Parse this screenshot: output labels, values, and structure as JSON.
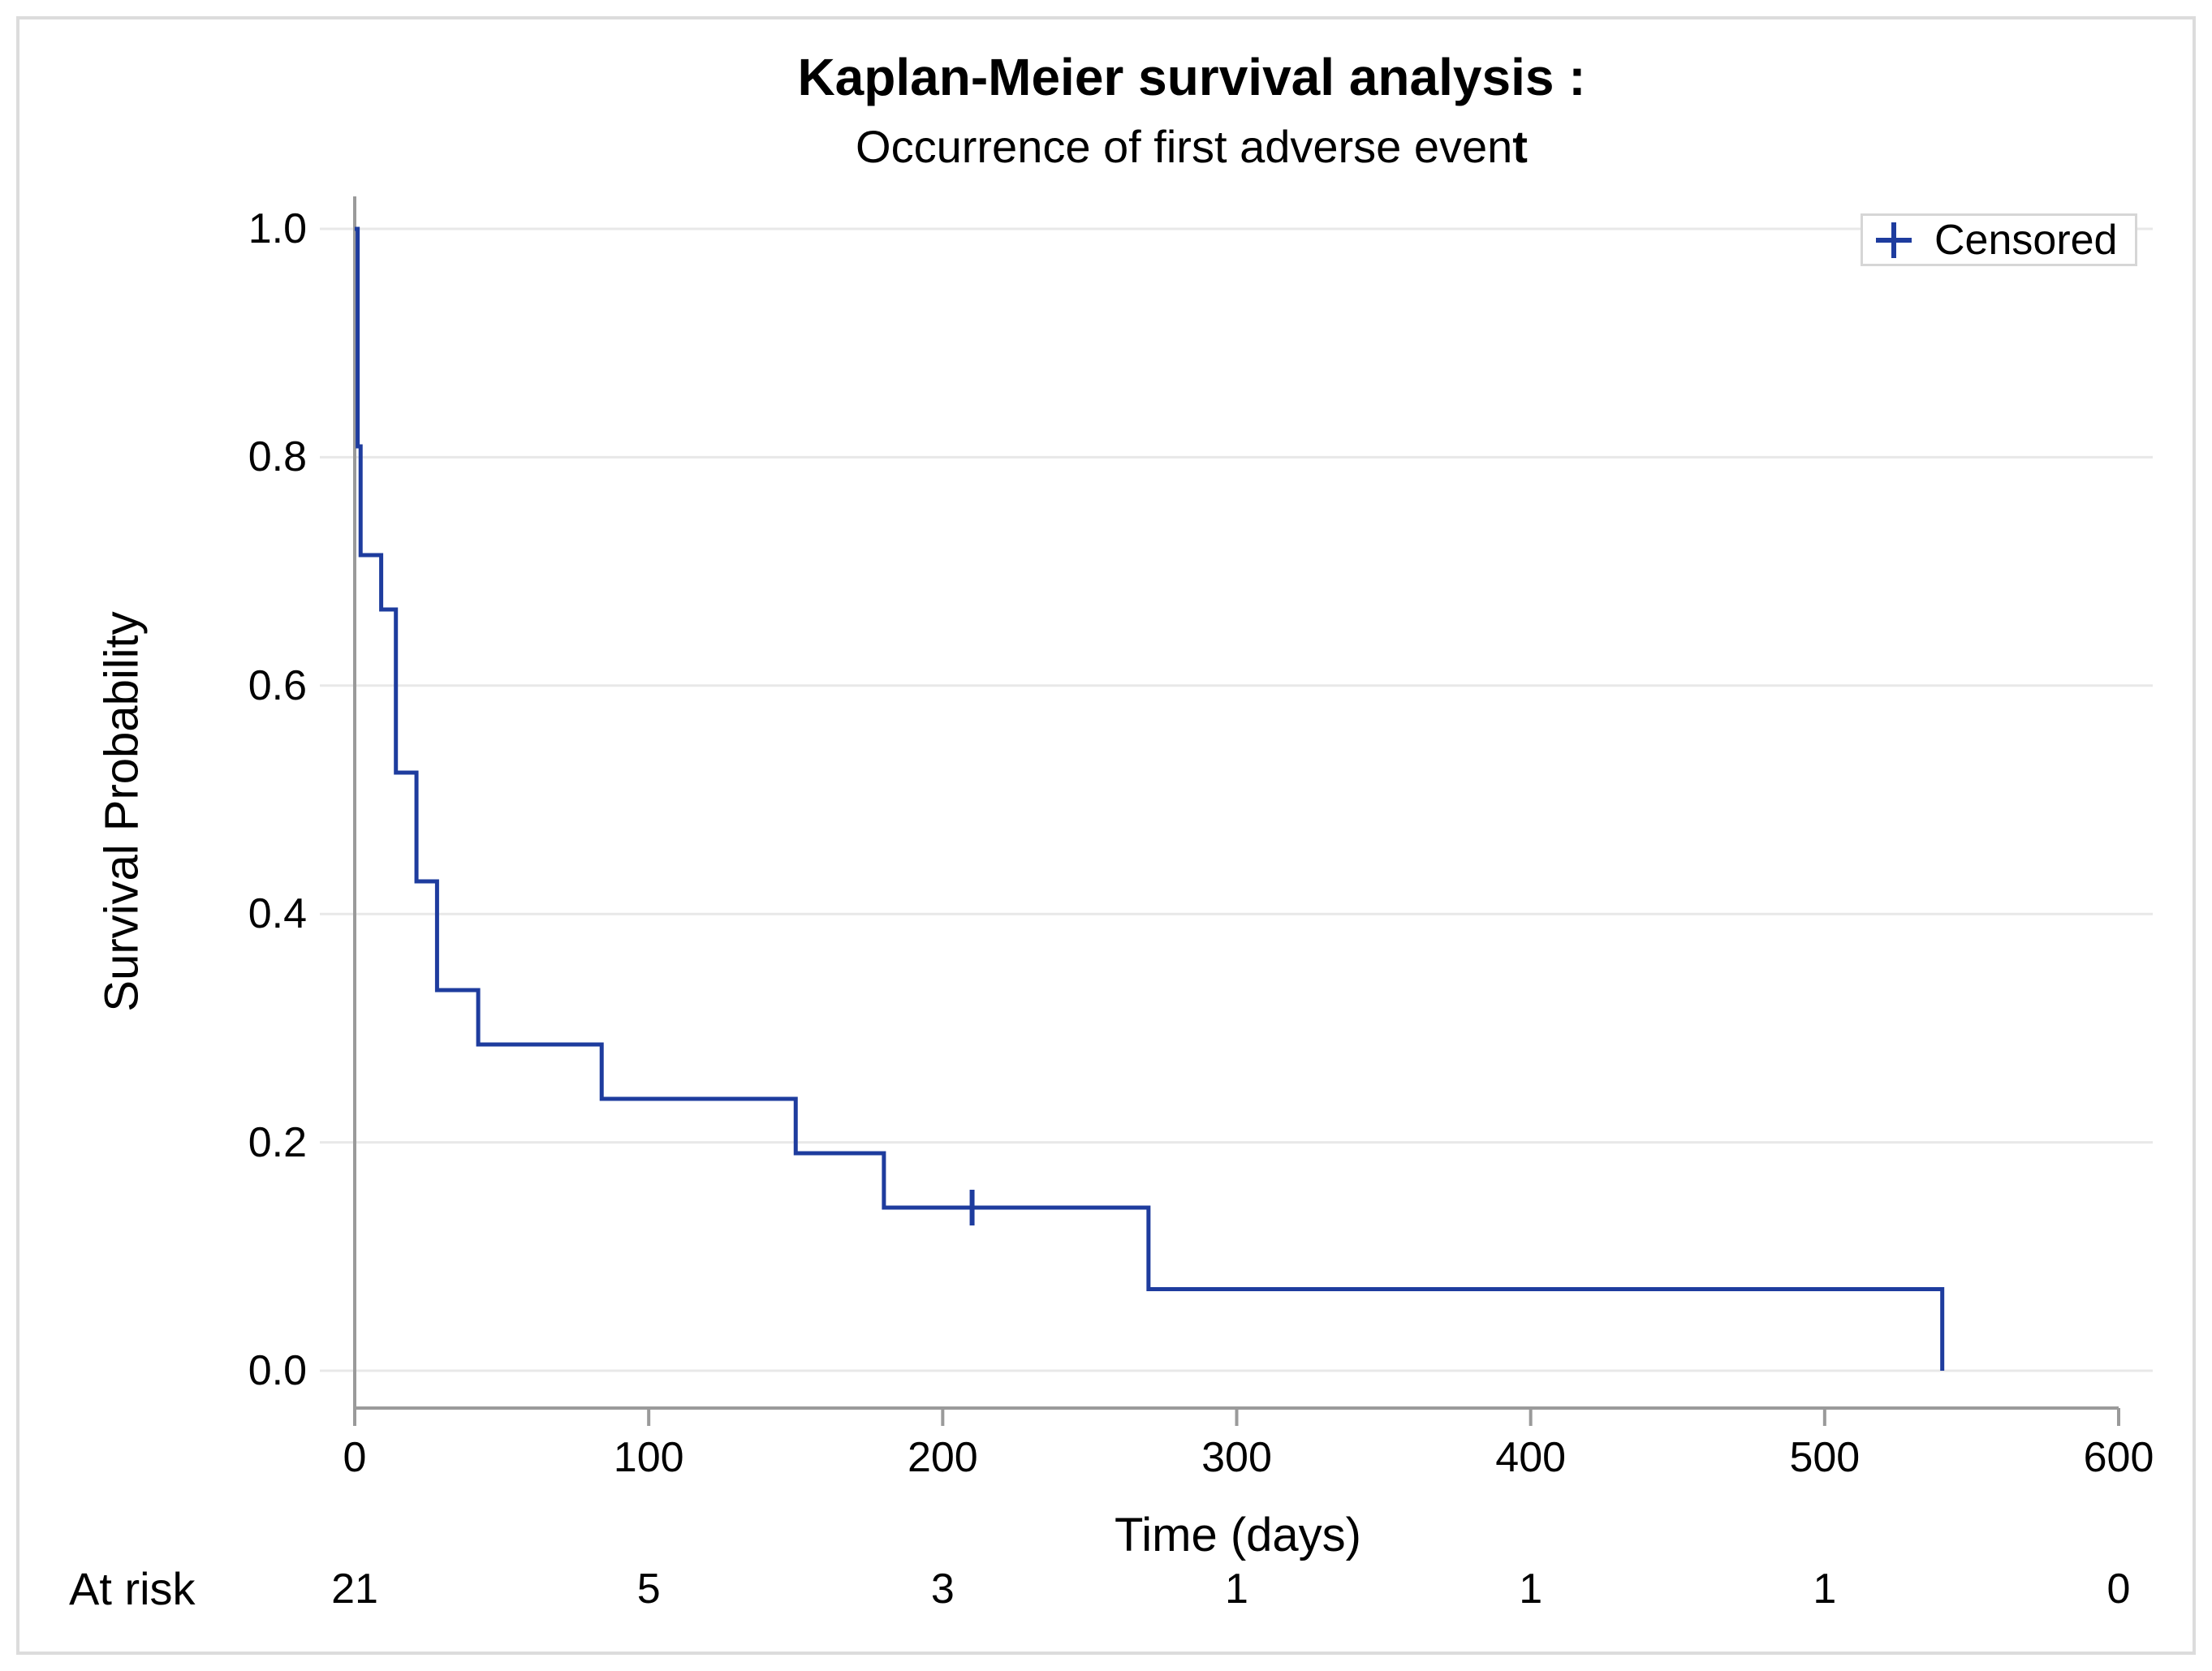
{
  "title": "Kaplan-Meier survival analysis :",
  "subtitle": {
    "full": "Occurrence of first adverse event",
    "regular_part": "Occurrence of first adverse even",
    "bold_part": "t"
  },
  "legend": {
    "marker": "plus-censored-marker",
    "label": "Censored"
  },
  "x_axis": {
    "label": "Time (days)",
    "tick_values": [
      0,
      100,
      200,
      300,
      400,
      500,
      600
    ],
    "tick_labels": [
      "0",
      "100",
      "200",
      "300",
      "400",
      "500",
      "600"
    ],
    "min": 0,
    "max": 600
  },
  "y_axis": {
    "label": "Survival Probability",
    "tick_values": [
      0.0,
      0.2,
      0.4,
      0.6,
      0.8,
      1.0
    ],
    "tick_labels": [
      "0.0",
      "0.2",
      "0.4",
      "0.6",
      "0.8",
      "1.0"
    ],
    "min": 0,
    "max": 1
  },
  "at_risk": {
    "label": "At risk",
    "times": [
      0,
      100,
      200,
      300,
      400,
      500,
      600
    ],
    "counts": [
      21,
      5,
      3,
      1,
      1,
      1,
      0
    ]
  },
  "chart_data": {
    "type": "line",
    "subtype": "kaplan-meier-step",
    "step": "post",
    "title": "Kaplan-Meier survival analysis :",
    "subtitle": "Occurrence of first adverse event",
    "xlabel": "Time (days)",
    "ylabel": "Survival Probability",
    "xlim": [
      0,
      600
    ],
    "ylim": [
      0.0,
      1.0
    ],
    "grid": "horizontal",
    "legend_position": "top-right",
    "series": [
      {
        "name": "Survival probability",
        "color": "#1e3c9e",
        "times": [
          0,
          1,
          2,
          9,
          14,
          21,
          28,
          42,
          84,
          150,
          180,
          270,
          540
        ],
        "survival": [
          1.0,
          0.8095,
          0.7143,
          0.6667,
          0.5238,
          0.4286,
          0.3333,
          0.2857,
          0.2381,
          0.1905,
          0.1429,
          0.0714,
          0.0
        ]
      }
    ],
    "censored_points": [
      {
        "time": 210,
        "survival": 0.1429
      }
    ],
    "number_at_risk": {
      "times": [
        0,
        100,
        200,
        300,
        400,
        500,
        600
      ],
      "counts": [
        21,
        5,
        3,
        1,
        1,
        1,
        0
      ]
    }
  },
  "colors": {
    "curve": "#1e3c9e",
    "grid": "#e8e8e8",
    "axis": "#9a9a9a",
    "frame": "#dcdcdc",
    "legend_border": "#d6d6d6",
    "text": "#000000"
  }
}
